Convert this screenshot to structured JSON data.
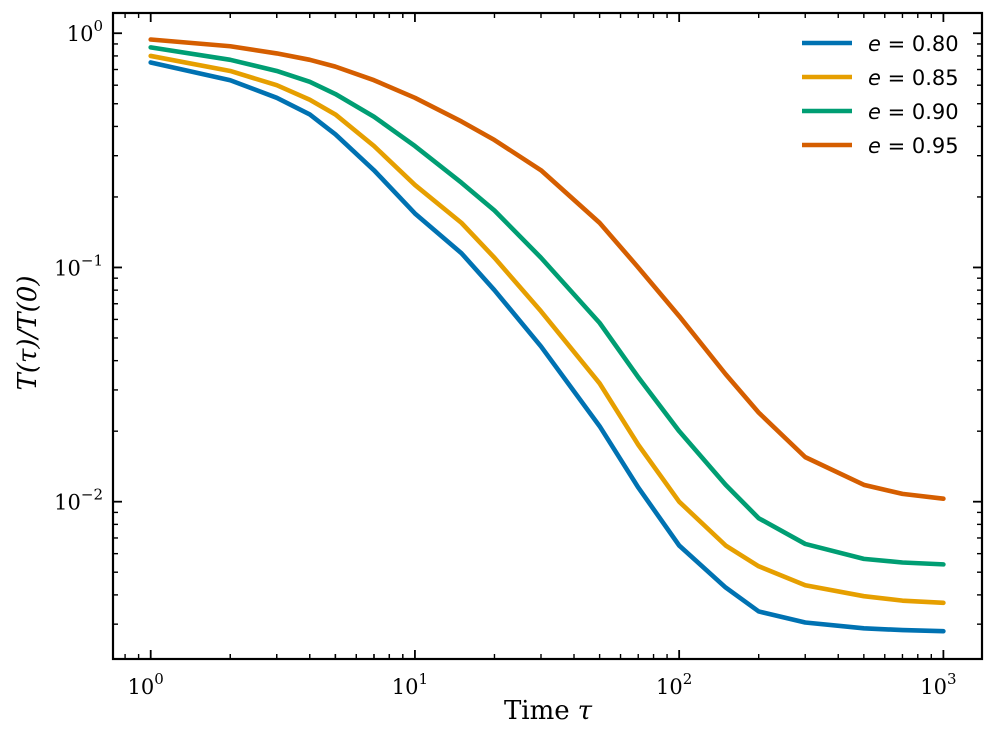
{
  "chart_data": {
    "type": "line",
    "title": "",
    "xlabel": "Time τ",
    "ylabel": "T(τ)/T(0)",
    "xscale": "log",
    "yscale": "log",
    "xlim": [
      0.72,
      1400
    ],
    "ylim": [
      0.00213,
      1.22
    ],
    "grid": false,
    "legend_position": "top-right",
    "x_ticks": [
      {
        "base": "10",
        "exp": "0",
        "value": 1
      },
      {
        "base": "10",
        "exp": "1",
        "value": 10
      },
      {
        "base": "10",
        "exp": "2",
        "value": 100
      },
      {
        "base": "10",
        "exp": "3",
        "value": 1000
      }
    ],
    "y_ticks": [
      {
        "base": "10",
        "exp": "0",
        "value": 1
      },
      {
        "base": "10",
        "exp": "−1",
        "value": 0.1
      },
      {
        "base": "10",
        "exp": "−2",
        "value": 0.01
      }
    ],
    "x": [
      1,
      2,
      3,
      4,
      5,
      7,
      10,
      15,
      20,
      30,
      50,
      70,
      100,
      150,
      200,
      300,
      500,
      700,
      1000
    ],
    "series": [
      {
        "name": "e = 0.80",
        "var": "e",
        "value": "0.80",
        "color": "#0072b2",
        "values": [
          0.75,
          0.63,
          0.53,
          0.45,
          0.37,
          0.26,
          0.17,
          0.115,
          0.08,
          0.046,
          0.021,
          0.0115,
          0.0065,
          0.0043,
          0.0034,
          0.00305,
          0.00288,
          0.00283,
          0.0028
        ]
      },
      {
        "name": "e = 0.85",
        "var": "e",
        "value": "0.85",
        "color": "#e69f00",
        "values": [
          0.8,
          0.69,
          0.6,
          0.52,
          0.45,
          0.33,
          0.225,
          0.155,
          0.11,
          0.065,
          0.032,
          0.0175,
          0.01,
          0.0065,
          0.0053,
          0.0044,
          0.00395,
          0.00378,
          0.0037
        ]
      },
      {
        "name": "e = 0.90",
        "var": "e",
        "value": "0.90",
        "color": "#009e73",
        "values": [
          0.87,
          0.77,
          0.69,
          0.62,
          0.55,
          0.44,
          0.33,
          0.23,
          0.175,
          0.11,
          0.058,
          0.034,
          0.02,
          0.0118,
          0.0085,
          0.0066,
          0.0057,
          0.0055,
          0.0054
        ]
      },
      {
        "name": "e = 0.95",
        "var": "e",
        "value": "0.95",
        "color": "#d55e00",
        "values": [
          0.94,
          0.88,
          0.82,
          0.77,
          0.72,
          0.63,
          0.53,
          0.42,
          0.35,
          0.26,
          0.155,
          0.1,
          0.062,
          0.035,
          0.024,
          0.0155,
          0.0118,
          0.0108,
          0.0103
        ]
      }
    ]
  }
}
